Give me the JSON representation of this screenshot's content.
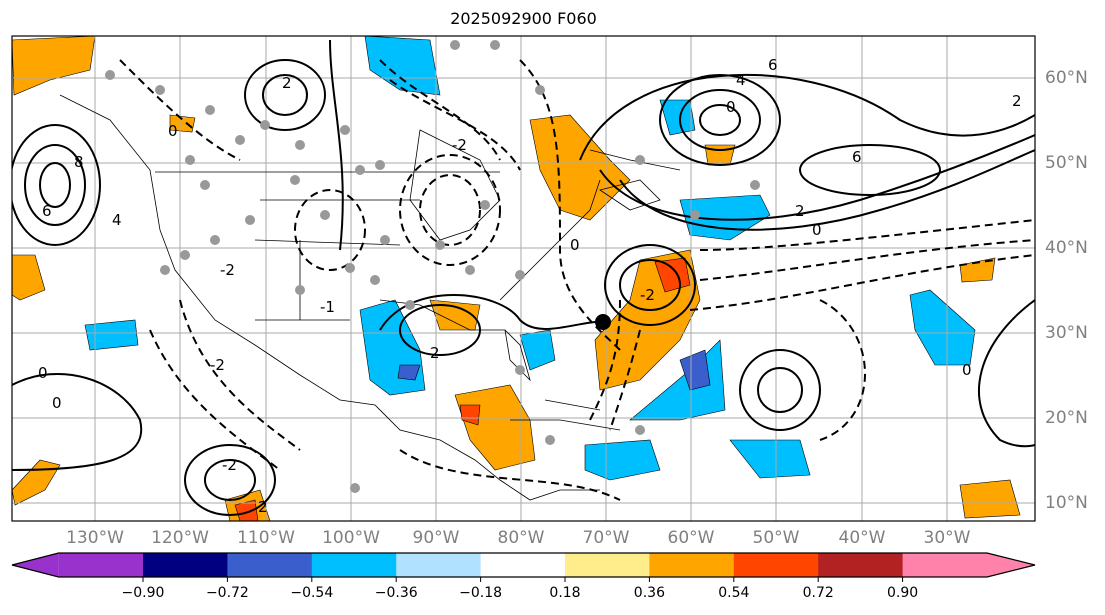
{
  "title": "2025092900 F060",
  "lon_labels": [
    "130°W",
    "120°W",
    "110°W",
    "100°W",
    "90°W",
    "80°W",
    "70°W",
    "60°W",
    "50°W",
    "40°W",
    "30°W"
  ],
  "lat_labels": [
    "60°N",
    "50°N",
    "40°N",
    "30°N",
    "20°N",
    "10°N"
  ],
  "colorbar": {
    "ticks": [
      "−0.90",
      "−0.72",
      "−0.54",
      "−0.36",
      "−0.18",
      "0.18",
      "0.36",
      "0.54",
      "0.72",
      "0.90"
    ],
    "colors": [
      "#9932cc",
      "#000080",
      "#3a5fcd",
      "#00bfff",
      "#b0e2ff",
      "#ffffff",
      "#ffec8b",
      "#ffa500",
      "#ff4500",
      "#b22222",
      "#ff82ab"
    ]
  },
  "contour_labels": [
    "8",
    "6",
    "4",
    "2",
    "0",
    "-2",
    "-2",
    "2",
    "0",
    "6",
    "6",
    "4",
    "0",
    "2",
    "0",
    "-2",
    "2",
    "0",
    "0",
    "-2",
    "2",
    "0",
    "-2",
    "-1"
  ]
}
